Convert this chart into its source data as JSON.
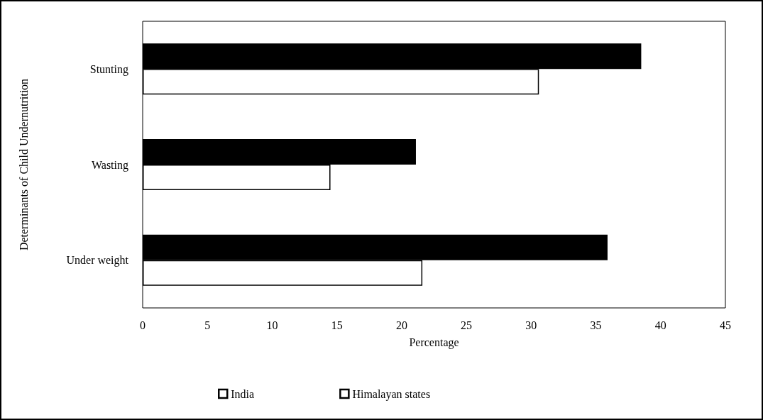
{
  "chart_data": {
    "type": "bar",
    "orientation": "horizontal",
    "xlabel": "Percentage",
    "ylabel": "Determinants of Child Undernutrition",
    "categories": [
      "Stunting",
      "Wasting",
      "Under weight"
    ],
    "series": [
      {
        "name": "India",
        "color": "#000000",
        "values": [
          38.5,
          21.1,
          35.9
        ]
      },
      {
        "name": "Himalayan states",
        "color": "#ffffff",
        "values": [
          30.6,
          14.5,
          21.6
        ]
      }
    ],
    "xlim": [
      0,
      45
    ],
    "xticks": [
      0,
      5,
      10,
      15,
      20,
      25,
      30,
      35,
      40,
      45
    ],
    "grid": false,
    "legend": "bottom"
  }
}
